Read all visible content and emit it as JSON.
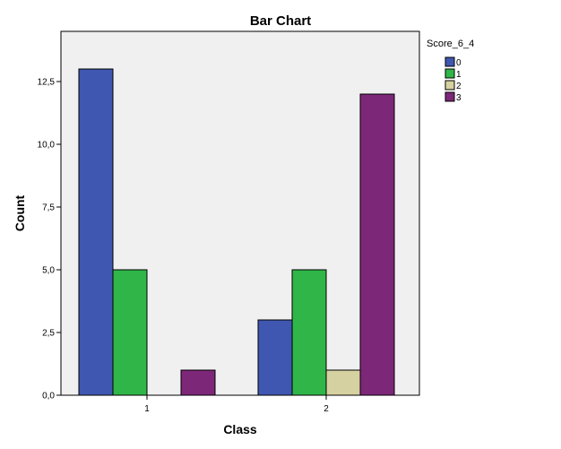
{
  "chart_data": {
    "type": "bar",
    "title": "Bar Chart",
    "xlabel": "Class",
    "ylabel": "Count",
    "categories": [
      "1",
      "2"
    ],
    "legend_title": "Score_6_4",
    "legend_position": "top-right",
    "series": [
      {
        "name": "0",
        "color": "#3f57b0",
        "values": [
          13,
          3
        ]
      },
      {
        "name": "1",
        "color": "#2fb548",
        "values": [
          5,
          5
        ]
      },
      {
        "name": "2",
        "color": "#d6d1a0",
        "values": [
          0,
          1
        ]
      },
      {
        "name": "3",
        "color": "#7d2778",
        "values": [
          1,
          12
        ]
      }
    ],
    "ylim": [
      0,
      14.5
    ],
    "yticks": [
      0,
      2.5,
      5,
      7.5,
      10,
      12.5
    ],
    "ytick_labels": [
      "0,0",
      "2,5",
      "5,0",
      "7,5",
      "10,0",
      "12,5"
    ],
    "grid": false,
    "plot_background": "#f0f0f0"
  }
}
